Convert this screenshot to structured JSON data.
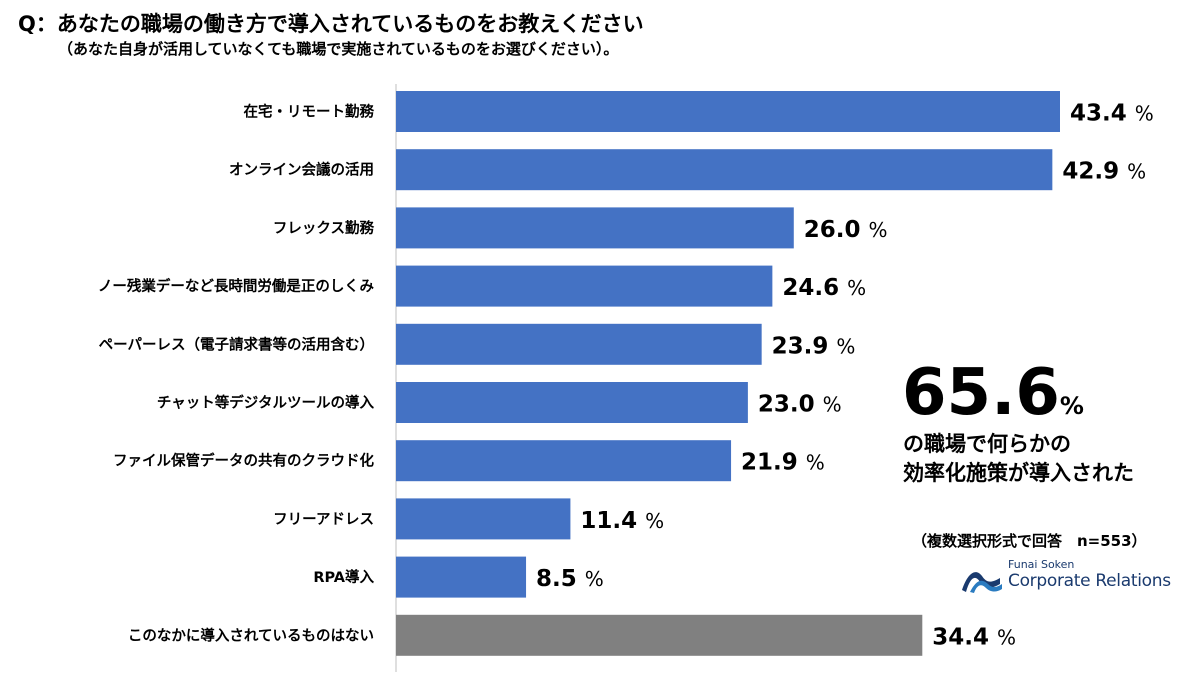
{
  "question": {
    "title": "Q：あなたの職場の働き方で導入されているものをお教えください",
    "subtitle": "（あなた自身が活用していなくても職場で実施されているものをお選びください）。"
  },
  "chart_data": {
    "type": "bar",
    "orientation": "horizontal",
    "categories": [
      "在宅・リモート勤務",
      "オンライン会議の活用",
      "フレックス勤務",
      "ノー残業デーなど長時間労働是正のしくみ",
      "ペーパーレス（電子請求書等の活用含む）",
      "チャット等デジタルツールの導入",
      "ファイル保管データの共有のクラウド化",
      "フリーアドレス",
      "RPA導入",
      "このなかに導入されているものはない"
    ],
    "values": [
      43.4,
      42.9,
      26.0,
      24.6,
      23.9,
      23.0,
      21.9,
      11.4,
      8.5,
      34.4
    ],
    "value_labels": [
      "43.4",
      "42.9",
      "26.0",
      "24.6",
      "23.9",
      "23.0",
      "21.9",
      "11.4",
      "8.5",
      "34.4"
    ],
    "unit": "%",
    "bar_colors": [
      "#4472C4",
      "#4472C4",
      "#4472C4",
      "#4472C4",
      "#4472C4",
      "#4472C4",
      "#4472C4",
      "#4472C4",
      "#4472C4",
      "#808080"
    ],
    "xlim": [
      0,
      43.4
    ],
    "grid": false,
    "legend": "none"
  },
  "highlight": {
    "value": "65.6",
    "unit": "%",
    "line1": "の職場で何らかの",
    "line2": "効率化施策が導入された"
  },
  "note": "（複数選択形式で回答　n=553）",
  "logo": {
    "small": "Funai Soken",
    "large": "Corporate Relations",
    "color": "#1a3a6e"
  }
}
